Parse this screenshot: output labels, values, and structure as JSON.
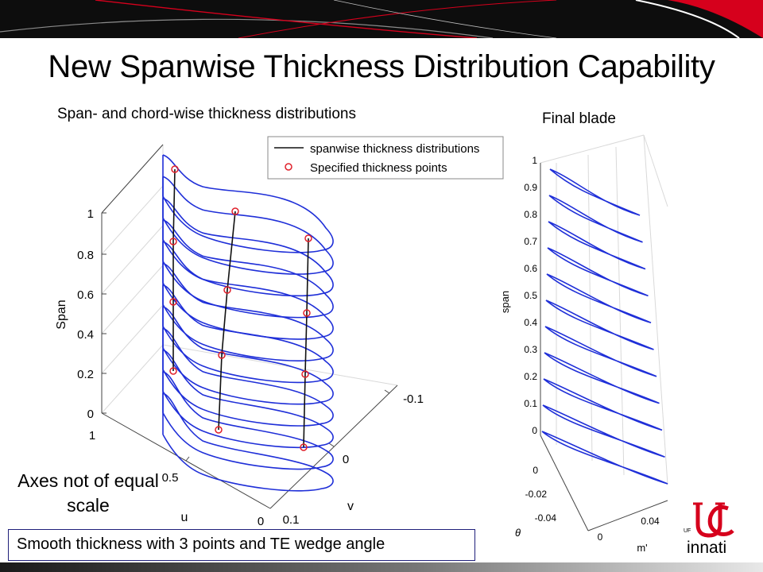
{
  "slide": {
    "title": "New Spanwise Thickness Distribution Capability",
    "left_caption": "Span- and chord-wise thickness distributions",
    "right_caption": "Final blade",
    "note": "Axes not of equal scale",
    "callout": "Smooth thickness with 3 points and TE wedge angle",
    "logo_text": "innati",
    "logo_small": "UF"
  },
  "colors": {
    "banner": "#0d0d0d",
    "accent_red": "#d6001c",
    "curve_blue": "#1f2fd8",
    "marker_red": "#e0202a",
    "axis_gray": "#555555"
  },
  "left_plot": {
    "legend": [
      "spanwise thickness distributions",
      "Specified thickness points"
    ],
    "z_label": "Span",
    "u_label": "u",
    "v_label": "v",
    "z_ticks": [
      "0",
      "0.2",
      "0.4",
      "0.6",
      "0.8",
      "1"
    ],
    "u_ticks": [
      "0",
      "0.5",
      "1"
    ],
    "v_ticks": [
      "0.1",
      "0",
      "-0.1"
    ]
  },
  "right_plot": {
    "z_label": "span",
    "theta_label": "θ",
    "m_label": "m'",
    "z_ticks": [
      "0",
      "0.1",
      "0.2",
      "0.3",
      "0.4",
      "0.5",
      "0.6",
      "0.7",
      "0.8",
      "0.9",
      "1"
    ],
    "theta_ticks": [
      "0",
      "-0.02",
      "-0.04"
    ],
    "m_ticks": [
      "0",
      "0.04"
    ]
  }
}
